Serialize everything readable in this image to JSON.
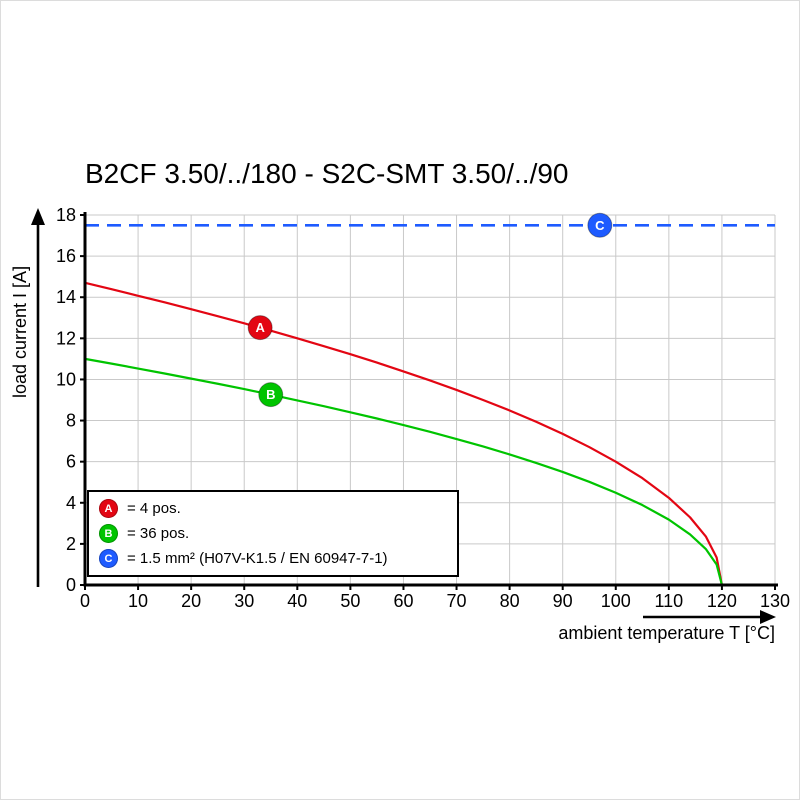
{
  "chart_data": {
    "type": "line",
    "title": "B2CF 3.50/../180 - S2C-SMT 3.50/../90",
    "xlabel": "ambient temperature T [°C]",
    "ylabel": "load current I [A]",
    "xlim": [
      0,
      130
    ],
    "ylim": [
      0,
      18
    ],
    "xticks": [
      0,
      10,
      20,
      30,
      40,
      50,
      60,
      70,
      80,
      90,
      100,
      110,
      120,
      130
    ],
    "yticks": [
      0,
      2,
      4,
      6,
      8,
      10,
      12,
      14,
      16,
      18
    ],
    "grid": true,
    "grid_color": "#c9c9c9",
    "axis_color": "#000000",
    "series": [
      {
        "name": "A",
        "label": "4 pos.",
        "type": "curve",
        "color": "#e30613",
        "points": [
          [
            0,
            14.7
          ],
          [
            5,
            14.39
          ],
          [
            10,
            14.07
          ],
          [
            15,
            13.75
          ],
          [
            20,
            13.42
          ],
          [
            25,
            13.08
          ],
          [
            30,
            12.73
          ],
          [
            35,
            12.37
          ],
          [
            40,
            12.0
          ],
          [
            45,
            11.62
          ],
          [
            50,
            11.23
          ],
          [
            55,
            10.82
          ],
          [
            60,
            10.39
          ],
          [
            65,
            9.95
          ],
          [
            70,
            9.49
          ],
          [
            75,
            9.0
          ],
          [
            80,
            8.49
          ],
          [
            85,
            7.94
          ],
          [
            90,
            7.35
          ],
          [
            95,
            6.71
          ],
          [
            100,
            6.0
          ],
          [
            105,
            5.2
          ],
          [
            110,
            4.24
          ],
          [
            114,
            3.29
          ],
          [
            117,
            2.35
          ],
          [
            119,
            1.34
          ],
          [
            120,
            0
          ]
        ]
      },
      {
        "name": "B",
        "label": "36 pos.",
        "type": "curve",
        "color": "#00c400",
        "points": [
          [
            0,
            11.0
          ],
          [
            5,
            10.77
          ],
          [
            10,
            10.53
          ],
          [
            15,
            10.29
          ],
          [
            20,
            10.04
          ],
          [
            25,
            9.79
          ],
          [
            30,
            9.53
          ],
          [
            35,
            9.26
          ],
          [
            40,
            8.98
          ],
          [
            45,
            8.7
          ],
          [
            50,
            8.4
          ],
          [
            55,
            8.1
          ],
          [
            60,
            7.78
          ],
          [
            65,
            7.45
          ],
          [
            70,
            7.1
          ],
          [
            75,
            6.74
          ],
          [
            80,
            6.35
          ],
          [
            85,
            5.94
          ],
          [
            90,
            5.5
          ],
          [
            95,
            5.02
          ],
          [
            100,
            4.49
          ],
          [
            105,
            3.89
          ],
          [
            110,
            3.18
          ],
          [
            114,
            2.46
          ],
          [
            117,
            1.74
          ],
          [
            119,
            1.0
          ],
          [
            120,
            0
          ]
        ]
      },
      {
        "name": "C",
        "label": "1.5 mm² (H07V-K1.5 / EN 60947-7-1)",
        "type": "dashed-horizontal",
        "color": "#1e5bff",
        "y": 17.5
      }
    ],
    "markers": [
      {
        "label": "A",
        "x": 33,
        "y": 12.52,
        "color": "#e30613"
      },
      {
        "label": "B",
        "x": 35,
        "y": 9.26,
        "color": "#00c400"
      },
      {
        "label": "C",
        "x": 97,
        "y": 17.5,
        "color": "#1e5bff"
      }
    ],
    "legend": {
      "position": "bottom-left",
      "items": [
        {
          "marker": "A",
          "color": "#e30613",
          "label": "= 4 pos."
        },
        {
          "marker": "B",
          "color": "#00c400",
          "label": "= 36 pos."
        },
        {
          "marker": "C",
          "color": "#1e5bff",
          "label": "= 1.5 mm² (H07V-K1.5 / EN 60947-7-1)"
        }
      ]
    }
  }
}
